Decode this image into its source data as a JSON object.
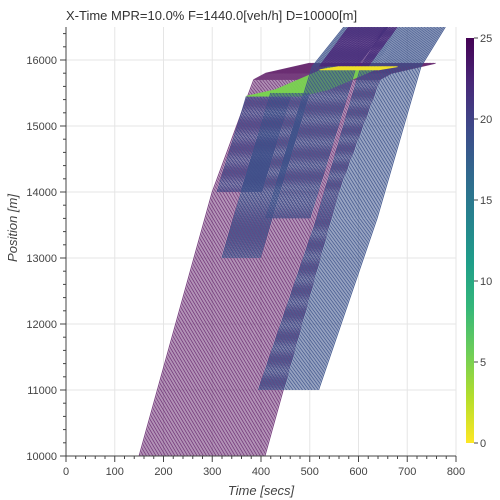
{
  "chart_data": {
    "type": "line",
    "title": "X-Time MPR=10.0% F=1440.0[veh/h] D=10000[m]",
    "xlabel": "Time [secs]",
    "ylabel": "Position [m]",
    "xlim": [
      0,
      800
    ],
    "ylim": [
      10000,
      16500
    ],
    "x_ticks": [
      "0",
      "100",
      "200",
      "300",
      "400",
      "500",
      "600",
      "700",
      "800"
    ],
    "y_ticks": [
      "10000",
      "11000",
      "12000",
      "13000",
      "14000",
      "15000",
      "16000"
    ],
    "grid": true,
    "legend": "none",
    "colorbar": {
      "min": 0,
      "max": 25,
      "ticks": [
        "0",
        "5",
        "10",
        "15",
        "20",
        "25"
      ],
      "colorscale": [
        "#fde725",
        "#b5de2b",
        "#6ece58",
        "#35b779",
        "#1f9e89",
        "#26828e",
        "#31688e",
        "#3e4989",
        "#482878",
        "#440154"
      ]
    },
    "groups": [
      {
        "description": "",
        "color": "#6b2f73",
        "color_value": 22,
        "start_time": [
          150,
          410
        ],
        "trajectory": [
          [
            0,
            10000
          ],
          [
            150,
            14000
          ],
          [
            235,
            15700
          ],
          [
            260,
            15800
          ],
          [
            350,
            15950
          ]
        ]
      },
      {
        "description": "",
        "color": "#3f4a88",
        "color_value": 17,
        "start_time": [
          310,
          400
        ],
        "trajectory": [
          [
            0,
            14000
          ],
          [
            50,
            15200
          ],
          [
            60,
            15450
          ]
        ]
      },
      {
        "description": "",
        "color": "#7ad151",
        "color_value": 4,
        "start_time": [
          370,
          480
        ],
        "trajectory": [
          [
            0,
            15450
          ],
          [
            60,
            15550
          ],
          [
            170,
            15900
          ]
        ]
      },
      {
        "description": "",
        "color": "#3b5189",
        "color_value": 17,
        "start_time": [
          320,
          400
        ],
        "trajectory": [
          [
            0,
            13000
          ],
          [
            100,
            15500
          ]
        ]
      },
      {
        "description": "",
        "color": "#3b5189",
        "color_value": 17,
        "start_time": [
          410,
          500
        ],
        "trajectory": [
          [
            0,
            13600
          ],
          [
            95,
            15900
          ],
          [
            160,
            16500
          ]
        ]
      },
      {
        "description": "",
        "color": "#3b5189",
        "color_value": 17,
        "start_time": [
          395,
          520
        ],
        "trajectory": [
          [
            0,
            11000
          ],
          [
            120,
            13600
          ],
          [
            210,
            15900
          ],
          [
            260,
            16500
          ]
        ]
      },
      {
        "description": "",
        "color": "#4a2377",
        "color_value": 22,
        "start_time": [
          520,
          620
        ],
        "trajectory": [
          [
            0,
            15900
          ],
          [
            40,
            16300
          ],
          [
            60,
            16500
          ]
        ]
      },
      {
        "description": "",
        "color": "#f0e12a",
        "color_value": 1,
        "start_time": [
          520,
          640
        ],
        "trajectory": [
          [
            0,
            15850
          ],
          [
            40,
            15900
          ]
        ]
      }
    ]
  }
}
